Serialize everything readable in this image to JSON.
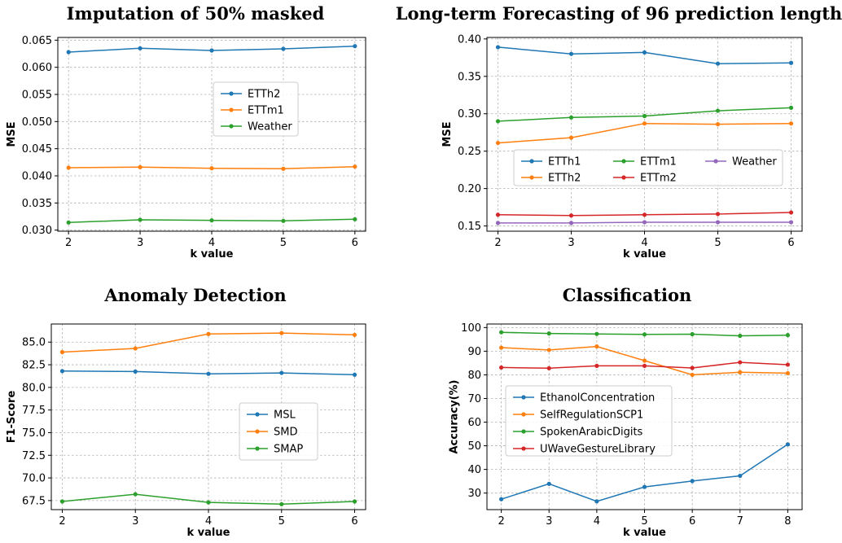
{
  "chart_data": [
    {
      "type": "line",
      "title": "Imputation of 50% masked",
      "xlabel": "k value",
      "ylabel": "MSE",
      "x": [
        2,
        3,
        4,
        5,
        6
      ],
      "xlim": [
        1.85,
        6.15
      ],
      "ylim": [
        0.0298,
        0.0655
      ],
      "yticks": [
        0.03,
        0.035,
        0.04,
        0.045,
        0.05,
        0.055,
        0.06,
        0.065
      ],
      "ytick_labels": [
        "0.030",
        "0.035",
        "0.040",
        "0.045",
        "0.050",
        "0.055",
        "0.060",
        "0.065"
      ],
      "grid": true,
      "legend_position": "center-right",
      "series": [
        {
          "name": "ETTh2",
          "color": "#1f77b4",
          "values": [
            0.0628,
            0.0635,
            0.0631,
            0.0634,
            0.0639
          ]
        },
        {
          "name": "ETTm1",
          "color": "#ff7f0e",
          "values": [
            0.0415,
            0.0416,
            0.0414,
            0.0413,
            0.0417
          ]
        },
        {
          "name": "Weather",
          "color": "#2ca02c",
          "values": [
            0.0314,
            0.0319,
            0.0318,
            0.0317,
            0.032
          ]
        }
      ]
    },
    {
      "type": "line",
      "title": "Long-term Forecasting of 96 prediction length",
      "xlabel": "k value",
      "ylabel": "MSE",
      "x": [
        2,
        3,
        4,
        5,
        6
      ],
      "xlim": [
        1.85,
        6.15
      ],
      "ylim": [
        0.143,
        0.402
      ],
      "yticks": [
        0.15,
        0.2,
        0.25,
        0.3,
        0.35,
        0.4
      ],
      "ytick_labels": [
        "0.15",
        "0.20",
        "0.25",
        "0.30",
        "0.35",
        "0.40"
      ],
      "grid": true,
      "legend_position": "center",
      "series": [
        {
          "name": "ETTh1",
          "color": "#1f77b4",
          "values": [
            0.389,
            0.38,
            0.382,
            0.367,
            0.368
          ]
        },
        {
          "name": "ETTh2",
          "color": "#ff7f0e",
          "values": [
            0.261,
            0.268,
            0.287,
            0.286,
            0.287
          ]
        },
        {
          "name": "ETTm1",
          "color": "#2ca02c",
          "values": [
            0.29,
            0.295,
            0.297,
            0.304,
            0.308
          ]
        },
        {
          "name": "ETTm2",
          "color": "#d62728",
          "values": [
            0.165,
            0.164,
            0.165,
            0.166,
            0.168
          ]
        },
        {
          "name": "Weather",
          "color": "#9467bd",
          "values": [
            0.154,
            0.154,
            0.155,
            0.155,
            0.155
          ]
        }
      ]
    },
    {
      "type": "line",
      "title": "Anomaly Detection",
      "xlabel": "k value",
      "ylabel": "F1-Score",
      "x": [
        2,
        3,
        4,
        5,
        6
      ],
      "xlim": [
        1.85,
        6.15
      ],
      "ylim": [
        66.5,
        87.0
      ],
      "yticks": [
        67.5,
        70,
        72.5,
        75,
        77.5,
        80,
        82.5,
        85
      ],
      "ytick_labels": [
        "67.5",
        "70.0",
        "72.5",
        "75.0",
        "77.5",
        "80.0",
        "82.5",
        "85.0"
      ],
      "grid": true,
      "legend_position": "center-right",
      "series": [
        {
          "name": "MSL",
          "color": "#1f77b4",
          "values": [
            81.8,
            81.75,
            81.5,
            81.6,
            81.4
          ]
        },
        {
          "name": "SMD",
          "color": "#ff7f0e",
          "values": [
            83.9,
            84.3,
            85.9,
            86.0,
            85.8
          ]
        },
        {
          "name": "SMAP",
          "color": "#2ca02c",
          "values": [
            67.4,
            68.2,
            67.3,
            67.1,
            67.4
          ]
        }
      ]
    },
    {
      "type": "line",
      "title": "Classification",
      "xlabel": "k value",
      "ylabel": "Accuracy(%)",
      "x": [
        2,
        3,
        4,
        5,
        6,
        7,
        8
      ],
      "xlim": [
        1.7,
        8.3
      ],
      "ylim": [
        23.0,
        101.5
      ],
      "yticks": [
        30,
        40,
        50,
        60,
        70,
        80,
        90,
        100
      ],
      "ytick_labels": [
        "30",
        "40",
        "50",
        "60",
        "70",
        "80",
        "90",
        "100"
      ],
      "grid": true,
      "legend_position": "center-left",
      "series": [
        {
          "name": "EthanolConcentration",
          "color": "#1f77b4",
          "values": [
            27.4,
            33.9,
            26.5,
            32.6,
            35.1,
            37.3,
            50.6
          ]
        },
        {
          "name": "SelfRegulationSCP1",
          "color": "#ff7f0e",
          "values": [
            91.5,
            90.5,
            92.0,
            86.0,
            80.0,
            81.1,
            80.7
          ]
        },
        {
          "name": "SpokenArabicDigits",
          "color": "#2ca02c",
          "values": [
            98.0,
            97.5,
            97.3,
            97.1,
            97.2,
            96.5,
            96.8
          ]
        },
        {
          "name": "UWaveGestureLibrary",
          "color": "#d62728",
          "values": [
            83.1,
            82.8,
            83.8,
            83.8,
            82.9,
            85.3,
            84.3
          ]
        }
      ]
    }
  ]
}
